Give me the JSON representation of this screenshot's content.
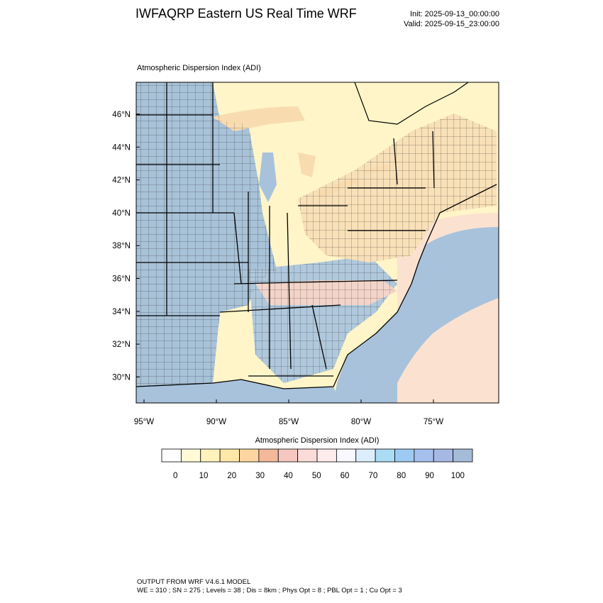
{
  "header": {
    "title": "IWFAQRP Eastern US Real Time WRF",
    "init": "Init: 2025-09-13_00:00:00",
    "valid": "Valid: 2025-09-15_23:00:00"
  },
  "plot": {
    "subtitle": "Atmospheric Dispersion Index   (ADI)",
    "lat_labels": [
      "46°N",
      "44°N",
      "42°N",
      "40°N",
      "38°N",
      "36°N",
      "34°N",
      "32°N",
      "30°N"
    ],
    "lon_labels": [
      "95°W",
      "90°W",
      "85°W",
      "80°W",
      "75°W"
    ]
  },
  "legend": {
    "title": "Atmospheric Dispersion Index  (ADI)",
    "tick_labels": [
      "0",
      "10",
      "20",
      "30",
      "40",
      "50",
      "60",
      "70",
      "80",
      "90",
      "100"
    ],
    "colors": [
      "#ffffff",
      "#fffbd6",
      "#fff2bc",
      "#ffe7a8",
      "#fdd5a0",
      "#f4b89a",
      "#f6c7c0",
      "#fbdcd8",
      "#fdeceb",
      "#f8f8ff",
      "#dceefc",
      "#aadcf4",
      "#9ccaf2",
      "#a6c0ee",
      "#a8b8e4",
      "#a4bcd8"
    ]
  },
  "colors": {
    "land_west": "#a8c2d8",
    "land_east": "#f8e0b8",
    "water": "#a8c2dc",
    "outside": "#fff5c8",
    "border": "#000000"
  },
  "footer": {
    "line1": "OUTPUT FROM WRF V4.6.1 MODEL",
    "line2": "WE = 310 ; SN = 275 ; Levels = 38 ; Dis = 8km ; Phys Opt = 8 ; PBL Opt = 1 ; Cu Opt = 3"
  }
}
